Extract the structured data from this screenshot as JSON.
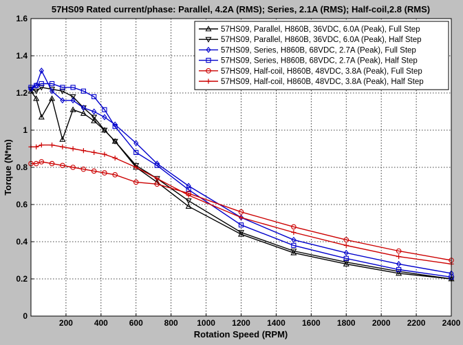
{
  "chart_data": {
    "type": "line",
    "title": "57HS09 Rated current/phase: Parallel, 4.2A (RMS); Series, 2.1A (RMS); Half-coil,2.8 (RMS)",
    "xlabel": "Rotation Speed (RPM)",
    "ylabel": "Torque (N*m)",
    "xlim": [
      0,
      2400
    ],
    "ylim": [
      0,
      1.6
    ],
    "xticks": [
      200,
      400,
      600,
      800,
      1000,
      1200,
      1400,
      1600,
      1800,
      2000,
      2200,
      2400
    ],
    "yticks": [
      0,
      0.2,
      0.4,
      0.6,
      0.8,
      1,
      1.2,
      1.4,
      1.6
    ],
    "grid": true,
    "legend_position": "top-right",
    "series": [
      {
        "name": "57HS09, Parallel, H860B, 36VDC, 6.0A (Peak), Full Step",
        "color": "#000000",
        "marker": "triangle-up",
        "x": [
          0,
          30,
          60,
          120,
          180,
          240,
          300,
          360,
          420,
          480,
          600,
          720,
          900,
          1200,
          1500,
          1800,
          2100,
          2400
        ],
        "y": [
          1.21,
          1.17,
          1.07,
          1.17,
          0.95,
          1.11,
          1.09,
          1.05,
          1.0,
          0.94,
          0.8,
          0.72,
          0.59,
          0.44,
          0.34,
          0.28,
          0.23,
          0.2
        ]
      },
      {
        "name": "57HS09, Parallel, H860B, 36VDC, 6.0A (Peak), Half Step",
        "color": "#000000",
        "marker": "triangle-down",
        "x": [
          0,
          30,
          60,
          120,
          180,
          240,
          300,
          360,
          420,
          480,
          600,
          720,
          900,
          1200,
          1500,
          1800,
          2100,
          2400
        ],
        "y": [
          1.22,
          1.21,
          1.23,
          1.22,
          1.21,
          1.18,
          1.12,
          1.07,
          1.0,
          0.94,
          0.81,
          0.74,
          0.62,
          0.45,
          0.35,
          0.29,
          0.24,
          0.2
        ]
      },
      {
        "name": "57HS09, Series, H860B, 68VDC, 2.7A (Peak), Full Step",
        "color": "#0000cc",
        "marker": "diamond",
        "x": [
          0,
          30,
          60,
          120,
          180,
          240,
          300,
          360,
          420,
          480,
          600,
          720,
          900,
          1200,
          1500,
          1800,
          2100,
          2400
        ],
        "y": [
          1.22,
          1.24,
          1.32,
          1.21,
          1.16,
          1.16,
          1.12,
          1.1,
          1.07,
          1.03,
          0.93,
          0.82,
          0.7,
          0.53,
          0.41,
          0.34,
          0.28,
          0.23
        ]
      },
      {
        "name": "57HS09, Series, H860B, 68VDC, 2.7A (Peak), Half Step",
        "color": "#0000cc",
        "marker": "square",
        "x": [
          0,
          30,
          60,
          120,
          180,
          240,
          300,
          360,
          420,
          480,
          600,
          720,
          900,
          1200,
          1500,
          1800,
          2100,
          2400
        ],
        "y": [
          1.23,
          1.24,
          1.25,
          1.25,
          1.23,
          1.23,
          1.21,
          1.18,
          1.11,
          1.02,
          0.88,
          0.81,
          0.68,
          0.49,
          0.38,
          0.31,
          0.25,
          0.21
        ]
      },
      {
        "name": "57HS09, Half-coil, H860B, 48VDC, 3.8A (Peak), Full Step",
        "color": "#cc0000",
        "marker": "circle",
        "x": [
          0,
          30,
          60,
          120,
          180,
          240,
          300,
          360,
          420,
          480,
          600,
          720,
          900,
          1200,
          1500,
          1800,
          2100,
          2400
        ],
        "y": [
          0.82,
          0.82,
          0.83,
          0.82,
          0.81,
          0.8,
          0.79,
          0.78,
          0.77,
          0.76,
          0.72,
          0.71,
          0.66,
          0.56,
          0.48,
          0.41,
          0.35,
          0.3
        ]
      },
      {
        "name": "57HS09, Half-coil, H860B, 48VDC, 3.8A (Peak), Half Step",
        "color": "#cc0000",
        "marker": "plus",
        "x": [
          0,
          30,
          60,
          120,
          180,
          240,
          300,
          360,
          420,
          480,
          600,
          720,
          900,
          1200,
          1500,
          1800,
          2100,
          2400
        ],
        "y": [
          0.91,
          0.91,
          0.92,
          0.92,
          0.91,
          0.9,
          0.89,
          0.88,
          0.87,
          0.85,
          0.8,
          0.74,
          0.65,
          0.53,
          0.45,
          0.38,
          0.32,
          0.28
        ]
      }
    ]
  }
}
